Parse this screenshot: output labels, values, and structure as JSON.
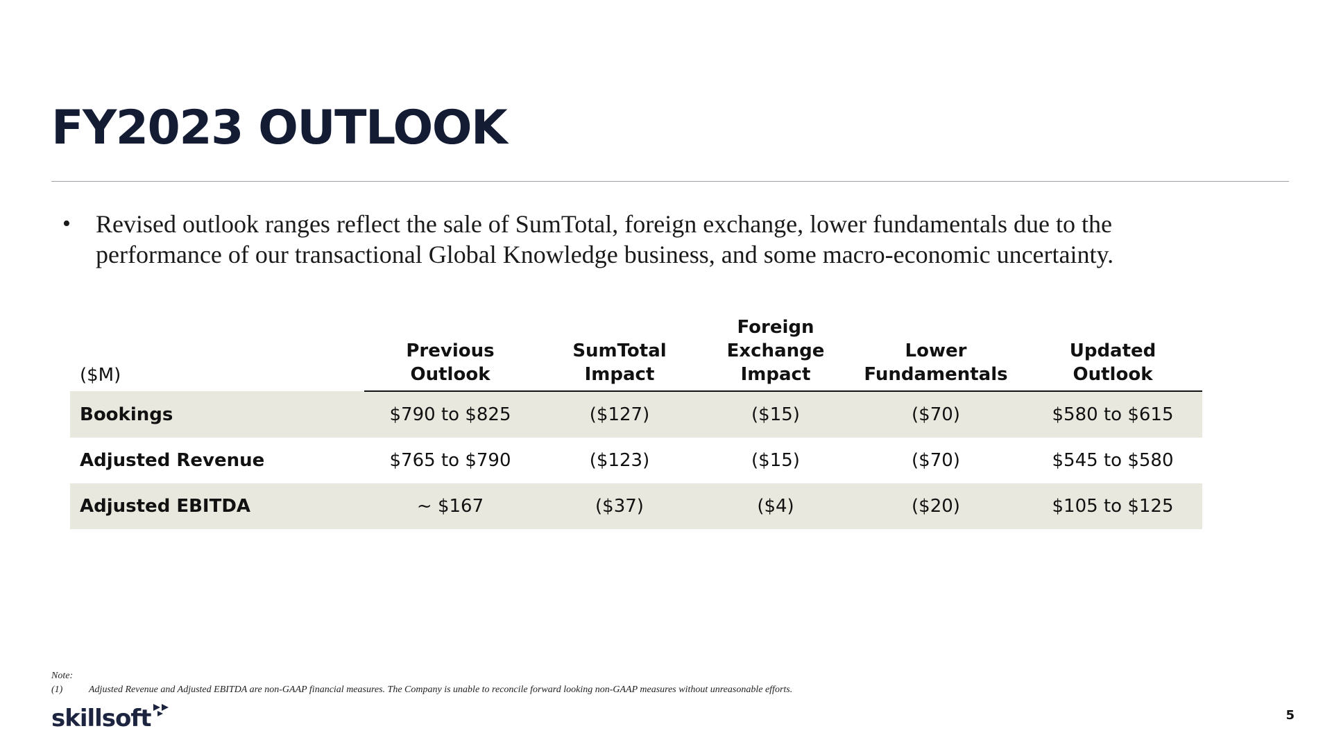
{
  "slide": {
    "title": "FY2023 OUTLOOK",
    "page_number": "5"
  },
  "bullets": [
    "Revised outlook ranges reflect the sale of SumTotal, foreign exchange, lower fundamentals due to the performance of our transactional Global Knowledge business, and some macro-economic uncertainty."
  ],
  "bullet_glyph": "•",
  "table": {
    "units": "($M)",
    "headers": {
      "previous": [
        "Previous",
        "Outlook"
      ],
      "sumtotal": [
        "SumTotal",
        "Impact"
      ],
      "fx": [
        "Foreign",
        "Exchange",
        "Impact"
      ],
      "lower": [
        "Lower",
        "Fundamentals"
      ],
      "updated": [
        "Updated",
        "Outlook"
      ]
    },
    "rows": [
      {
        "label": "Bookings",
        "previous": "$790 to $825",
        "sumtotal": "($127)",
        "fx": "($15)",
        "lower": "($70)",
        "updated": "$580 to $615"
      },
      {
        "label": "Adjusted Revenue",
        "previous": "$765 to $790",
        "sumtotal": "($123)",
        "fx": "($15)",
        "lower": "($70)",
        "updated": "$545 to $580"
      },
      {
        "label": "Adjusted EBITDA",
        "previous": "~ $167",
        "sumtotal": "($37)",
        "fx": "($4)",
        "lower": "($20)",
        "updated": "$105 to $125"
      }
    ],
    "shading_color": "#e9e8de"
  },
  "notes": {
    "label": "Note:",
    "items": [
      {
        "num": "(1)",
        "text": "Adjusted Revenue and Adjusted EBITDA are non-GAAP financial measures.  The Company is unable to reconcile forward looking non-GAAP measures without unreasonable efforts."
      }
    ]
  },
  "logo": {
    "text": "skillsoft",
    "icon": "double-chevron-play-icon"
  },
  "colors": {
    "title": "#131c33",
    "logo": "#1d2440"
  }
}
